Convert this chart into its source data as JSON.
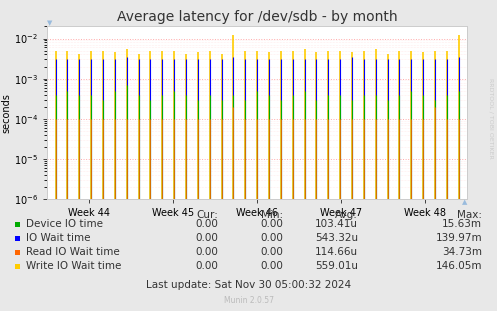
{
  "title": "Average latency for /dev/sdb - by month",
  "ylabel": "seconds",
  "bg_color": "#e8e8e8",
  "plot_bg_color": "#ffffff",
  "ylim_min": 1e-06,
  "ylim_max": 0.02,
  "xtick_labels": [
    "Week 44",
    "Week 45",
    "Week 46",
    "Week 47",
    "Week 48"
  ],
  "watermark": "Munin 2.0.57",
  "rrdtool_label": "RRDTOOL / TOBI OETIKER",
  "title_fontsize": 10,
  "axis_fontsize": 7,
  "legend_fontsize": 7.5,
  "n_spikes": 35,
  "spike_min": 1e-06,
  "spike_color_device": "#00aa00",
  "spike_color_iowait": "#0000ff",
  "spike_color_read": "#ff6600",
  "spike_color_write": "#ffcc00",
  "write_heights": [
    0.005,
    0.005,
    0.004,
    0.005,
    0.005,
    0.0045,
    0.0055,
    0.004,
    0.005,
    0.005,
    0.005,
    0.004,
    0.0045,
    0.005,
    0.004,
    0.012,
    0.005,
    0.005,
    0.0045,
    0.005,
    0.005,
    0.0055,
    0.0045,
    0.005,
    0.005,
    0.0045,
    0.005,
    0.0055,
    0.004,
    0.005,
    0.005,
    0.0045,
    0.005,
    0.005,
    0.012
  ],
  "io_heights": [
    0.003,
    0.003,
    0.003,
    0.003,
    0.003,
    0.003,
    0.0035,
    0.003,
    0.003,
    0.003,
    0.003,
    0.003,
    0.003,
    0.003,
    0.003,
    0.0035,
    0.003,
    0.003,
    0.003,
    0.003,
    0.003,
    0.003,
    0.003,
    0.003,
    0.003,
    0.0035,
    0.003,
    0.003,
    0.003,
    0.003,
    0.003,
    0.003,
    0.003,
    0.003,
    0.0035
  ],
  "dev_heights": [
    0.0004,
    0.0005,
    0.0004,
    0.0004,
    0.0003,
    0.0005,
    0.0007,
    0.0004,
    0.0003,
    0.0004,
    0.0005,
    0.0004,
    0.0003,
    0.0004,
    0.0003,
    0.0004,
    0.0003,
    0.0005,
    0.0004,
    0.0003,
    0.0004,
    0.0005,
    0.0003,
    0.0004,
    0.0004,
    0.0003,
    0.0004,
    0.0004,
    0.0003,
    0.0004,
    0.0005,
    0.0004,
    0.0003,
    0.0004,
    0.0005
  ],
  "read_heights": [
    0.0001,
    0.0001,
    0.0001,
    0.0001,
    0.0001,
    0.0001,
    0.0001,
    0.0001,
    0.0001,
    0.0001,
    0.0001,
    0.0001,
    0.0001,
    0.0001,
    0.0001,
    0.0002,
    0.0001,
    0.0001,
    0.0001,
    0.0001,
    0.0001,
    0.0001,
    0.0001,
    0.0001,
    0.0001,
    0.0001,
    0.0001,
    0.0001,
    0.0001,
    0.0001,
    0.0001,
    0.0001,
    0.0002,
    0.0001,
    0.0001
  ],
  "legend_rows": [
    [
      "Device IO time",
      "0.00",
      "0.00",
      "103.41u",
      "15.63m"
    ],
    [
      "IO Wait time",
      "0.00",
      "0.00",
      "543.32u",
      "139.97m"
    ],
    [
      "Read IO Wait time",
      "0.00",
      "0.00",
      "114.66u",
      "34.73m"
    ],
    [
      "Write IO Wait time",
      "0.00",
      "0.00",
      "559.01u",
      "146.05m"
    ]
  ],
  "last_update": "Last update: Sat Nov 30 05:00:32 2024",
  "legend_colors": [
    "#00aa00",
    "#0000ff",
    "#ff6600",
    "#ffcc00"
  ]
}
